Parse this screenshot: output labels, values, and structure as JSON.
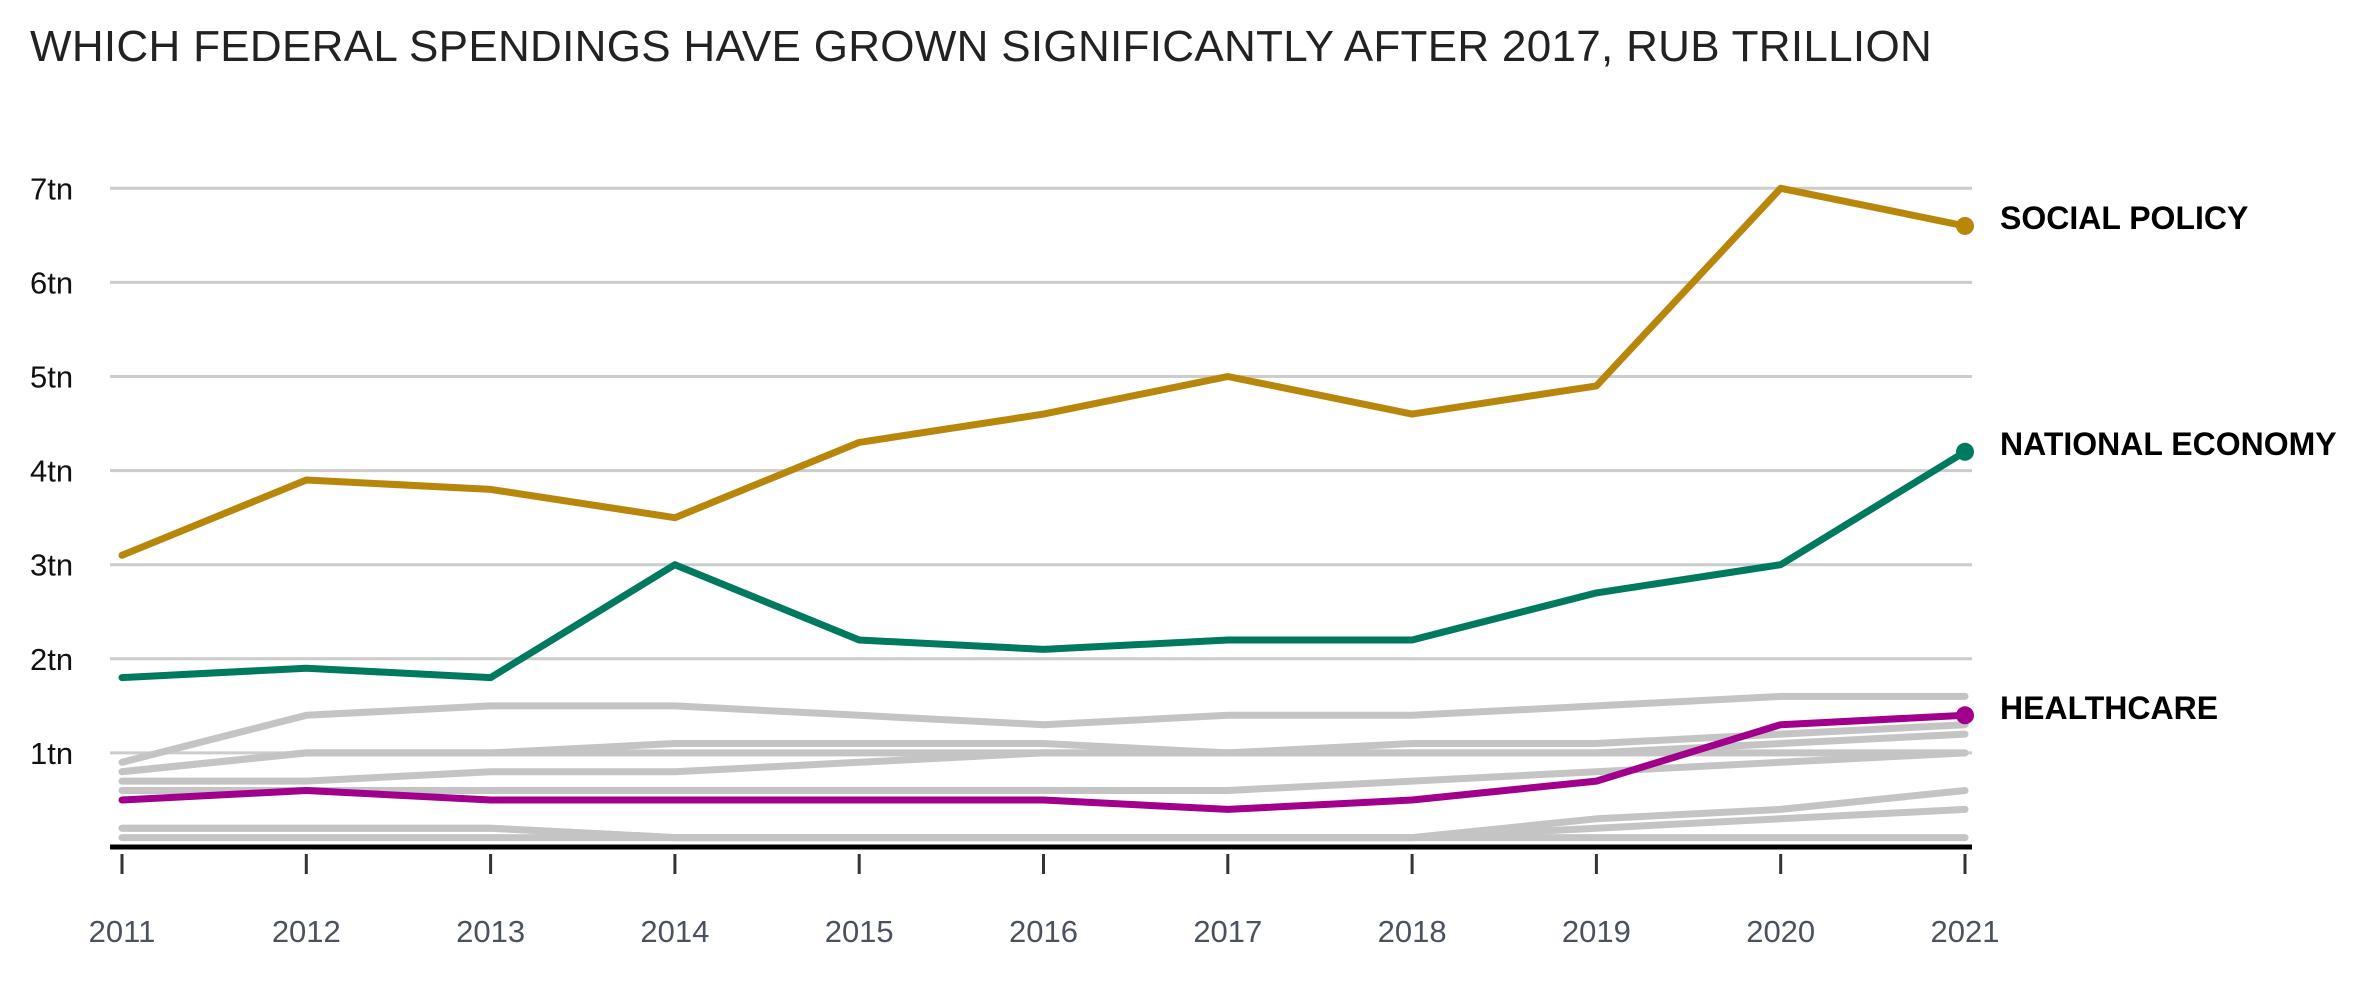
{
  "chart_data": {
    "type": "line",
    "title": "WHICH FEDERAL SPENDINGS HAVE GROWN SIGNIFICANTLY AFTER 2017, RUB TRILLION",
    "xlabel": "",
    "ylabel": "",
    "x": [
      "2011",
      "2012",
      "2013",
      "2014",
      "2015",
      "2016",
      "2017",
      "2018",
      "2019",
      "2020",
      "2021"
    ],
    "ylim": [
      0,
      7
    ],
    "yticks": [
      {
        "value": 1,
        "label": "1tn"
      },
      {
        "value": 2,
        "label": "2tn"
      },
      {
        "value": 3,
        "label": "3tn"
      },
      {
        "value": 4,
        "label": "4tn"
      },
      {
        "value": 5,
        "label": "5tn"
      },
      {
        "value": 6,
        "label": "6tn"
      },
      {
        "value": 7,
        "label": "7tn"
      }
    ],
    "grid": true,
    "legend": "direct labels at line ends",
    "highlighted_series": [
      {
        "name": "SOCIAL POLICY",
        "color": "#B8860B",
        "values": [
          3.1,
          3.9,
          3.8,
          3.5,
          4.3,
          4.6,
          5.0,
          4.6,
          4.9,
          7.0,
          6.6
        ]
      },
      {
        "name": "NATIONAL ECONOMY",
        "color": "#007A5E",
        "values": [
          1.8,
          1.9,
          1.8,
          3.0,
          2.2,
          2.1,
          2.2,
          2.2,
          2.7,
          3.0,
          4.2
        ]
      },
      {
        "name": "HEALTHCARE",
        "color": "#A0008C",
        "values": [
          0.5,
          0.6,
          0.5,
          0.5,
          0.5,
          0.5,
          0.4,
          0.5,
          0.7,
          1.3,
          1.4
        ]
      }
    ],
    "background_series_color": "#C4C4C4",
    "background_series": [
      {
        "values": [
          0.9,
          1.4,
          1.5,
          1.5,
          1.4,
          1.3,
          1.4,
          1.4,
          1.5,
          1.6,
          1.6
        ]
      },
      {
        "values": [
          0.8,
          1.0,
          1.0,
          1.1,
          1.1,
          1.1,
          1.0,
          1.1,
          1.1,
          1.2,
          1.3
        ]
      },
      {
        "values": [
          0.8,
          1.0,
          1.0,
          1.0,
          1.0,
          1.0,
          1.0,
          1.0,
          1.0,
          1.1,
          1.2
        ]
      },
      {
        "values": [
          0.7,
          0.7,
          0.8,
          0.8,
          0.9,
          1.0,
          1.0,
          1.0,
          1.0,
          1.0,
          1.0
        ]
      },
      {
        "values": [
          0.6,
          0.6,
          0.6,
          0.6,
          0.6,
          0.6,
          0.6,
          0.7,
          0.8,
          0.9,
          1.0
        ]
      },
      {
        "values": [
          0.2,
          0.2,
          0.2,
          0.1,
          0.1,
          0.1,
          0.1,
          0.1,
          0.3,
          0.4,
          0.6
        ]
      },
      {
        "values": [
          0.2,
          0.2,
          0.2,
          0.1,
          0.1,
          0.1,
          0.1,
          0.1,
          0.2,
          0.3,
          0.4
        ]
      },
      {
        "values": [
          0.1,
          0.1,
          0.1,
          0.1,
          0.1,
          0.1,
          0.1,
          0.1,
          0.1,
          0.1,
          0.1
        ]
      }
    ]
  }
}
